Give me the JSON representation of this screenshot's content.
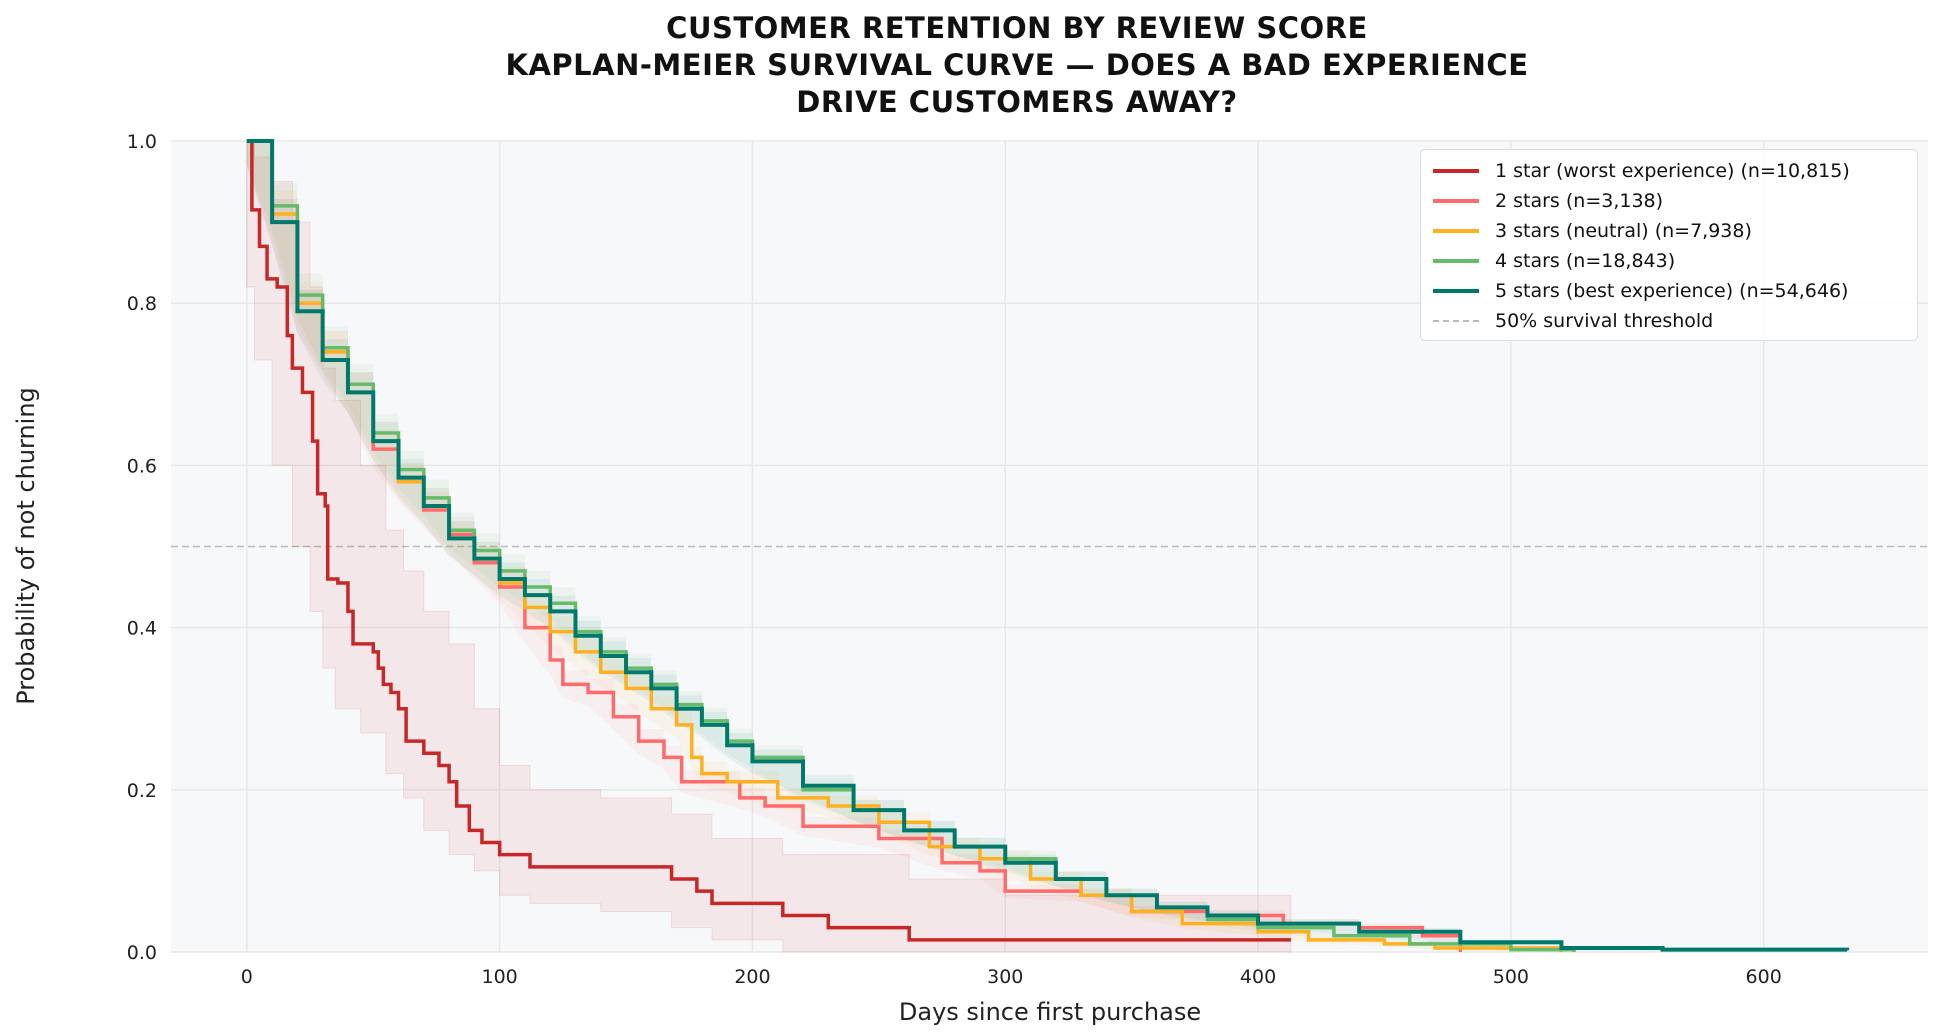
{
  "chart_data": {
    "type": "line",
    "title": [
      "CUSTOMER RETENTION BY REVIEW SCORE",
      "KAPLAN-MEIER SURVIVAL CURVE — DOES A BAD EXPERIENCE",
      "DRIVE CUSTOMERS AWAY?"
    ],
    "xlabel": "Days since first purchase",
    "ylabel": "Probability of not churning",
    "xlim": [
      -30,
      665
    ],
    "ylim": [
      0,
      1
    ],
    "xticks": [
      "0",
      "100",
      "200",
      "300",
      "400",
      "500",
      "600"
    ],
    "yticks": [
      "0.0",
      "0.2",
      "0.4",
      "0.6",
      "0.8",
      "1.0"
    ],
    "grid": true,
    "legend": "top-right",
    "background": "#f7f8fa",
    "threshold": {
      "label": "50% survival threshold",
      "y": 0.5,
      "color": "#bbbbbb"
    },
    "series": [
      {
        "name": "1 star  (worst experience)  (n=10,815)",
        "color": "#c62828",
        "points": [
          [
            0,
            1
          ],
          [
            2,
            0.915
          ],
          [
            5,
            0.87
          ],
          [
            8,
            0.83
          ],
          [
            12,
            0.82
          ],
          [
            16,
            0.76
          ],
          [
            18,
            0.72
          ],
          [
            22,
            0.69
          ],
          [
            26,
            0.63
          ],
          [
            28,
            0.565
          ],
          [
            31,
            0.55
          ],
          [
            32,
            0.46
          ],
          [
            36,
            0.455
          ],
          [
            40,
            0.42
          ],
          [
            42,
            0.38
          ],
          [
            50,
            0.37
          ],
          [
            52,
            0.35
          ],
          [
            54,
            0.33
          ],
          [
            57,
            0.32
          ],
          [
            60,
            0.3
          ],
          [
            63,
            0.26
          ],
          [
            70,
            0.245
          ],
          [
            76,
            0.23
          ],
          [
            80,
            0.21
          ],
          [
            83,
            0.18
          ],
          [
            88,
            0.15
          ],
          [
            93,
            0.135
          ],
          [
            100,
            0.12
          ],
          [
            112,
            0.105
          ],
          [
            168,
            0.09
          ],
          [
            178,
            0.075
          ],
          [
            184,
            0.06
          ],
          [
            212,
            0.045
          ],
          [
            230,
            0.03
          ],
          [
            262,
            0.015
          ],
          [
            413,
            0.015
          ]
        ],
        "ci_lower": [
          [
            0,
            1
          ],
          [
            3,
            0.82
          ],
          [
            10,
            0.73
          ],
          [
            18,
            0.6
          ],
          [
            25,
            0.5
          ],
          [
            30,
            0.42
          ],
          [
            35,
            0.35
          ],
          [
            45,
            0.3
          ],
          [
            55,
            0.27
          ],
          [
            62,
            0.22
          ],
          [
            70,
            0.19
          ],
          [
            80,
            0.15
          ],
          [
            90,
            0.12
          ],
          [
            100,
            0.1
          ],
          [
            112,
            0.07
          ],
          [
            140,
            0.06
          ],
          [
            168,
            0.05
          ],
          [
            184,
            0.03
          ],
          [
            212,
            0.015
          ],
          [
            262,
            0.0
          ],
          [
            413,
            0.0
          ]
        ],
        "ci_upper": [
          [
            0,
            1
          ],
          [
            3,
            0.98
          ],
          [
            10,
            0.95
          ],
          [
            18,
            0.9
          ],
          [
            25,
            0.82
          ],
          [
            30,
            0.72
          ],
          [
            35,
            0.68
          ],
          [
            45,
            0.6
          ],
          [
            55,
            0.52
          ],
          [
            62,
            0.47
          ],
          [
            70,
            0.42
          ],
          [
            80,
            0.38
          ],
          [
            90,
            0.3
          ],
          [
            100,
            0.23
          ],
          [
            112,
            0.2
          ],
          [
            140,
            0.19
          ],
          [
            168,
            0.17
          ],
          [
            184,
            0.14
          ],
          [
            212,
            0.12
          ],
          [
            262,
            0.09
          ],
          [
            300,
            0.07
          ],
          [
            413,
            0.07
          ]
        ]
      },
      {
        "name": "2 stars  (n=3,138)",
        "color": "#ff6b6b",
        "points": [
          [
            0,
            1
          ],
          [
            10,
            0.9
          ],
          [
            20,
            0.79
          ],
          [
            30,
            0.74
          ],
          [
            40,
            0.69
          ],
          [
            50,
            0.62
          ],
          [
            60,
            0.58
          ],
          [
            70,
            0.545
          ],
          [
            80,
            0.515
          ],
          [
            90,
            0.48
          ],
          [
            100,
            0.45
          ],
          [
            110,
            0.4
          ],
          [
            120,
            0.36
          ],
          [
            125,
            0.33
          ],
          [
            135,
            0.32
          ],
          [
            145,
            0.29
          ],
          [
            155,
            0.26
          ],
          [
            165,
            0.24
          ],
          [
            172,
            0.21
          ],
          [
            195,
            0.19
          ],
          [
            205,
            0.18
          ],
          [
            220,
            0.155
          ],
          [
            250,
            0.14
          ],
          [
            275,
            0.11
          ],
          [
            290,
            0.1
          ],
          [
            300,
            0.075
          ],
          [
            330,
            0.07
          ],
          [
            350,
            0.05
          ],
          [
            380,
            0.045
          ],
          [
            410,
            0.035
          ],
          [
            440,
            0.03
          ],
          [
            465,
            0.02
          ],
          [
            480,
            0.0
          ]
        ]
      },
      {
        "name": "3 stars (neutral)  (n=7,938)",
        "color": "#ffb020",
        "points": [
          [
            0,
            1
          ],
          [
            10,
            0.91
          ],
          [
            20,
            0.8
          ],
          [
            30,
            0.74
          ],
          [
            40,
            0.69
          ],
          [
            50,
            0.63
          ],
          [
            60,
            0.58
          ],
          [
            70,
            0.55
          ],
          [
            80,
            0.51
          ],
          [
            90,
            0.485
          ],
          [
            100,
            0.455
          ],
          [
            110,
            0.425
          ],
          [
            120,
            0.395
          ],
          [
            130,
            0.37
          ],
          [
            140,
            0.345
          ],
          [
            150,
            0.325
          ],
          [
            160,
            0.3
          ],
          [
            170,
            0.28
          ],
          [
            176,
            0.24
          ],
          [
            180,
            0.22
          ],
          [
            190,
            0.21
          ],
          [
            210,
            0.19
          ],
          [
            230,
            0.18
          ],
          [
            250,
            0.16
          ],
          [
            270,
            0.13
          ],
          [
            290,
            0.115
          ],
          [
            310,
            0.09
          ],
          [
            330,
            0.07
          ],
          [
            350,
            0.05
          ],
          [
            370,
            0.035
          ],
          [
            400,
            0.025
          ],
          [
            420,
            0.015
          ],
          [
            450,
            0.01
          ],
          [
            470,
            0.005
          ],
          [
            520,
            0.0
          ]
        ]
      },
      {
        "name": "4 stars  (n=18,843)",
        "color": "#66bb6a",
        "points": [
          [
            0,
            1
          ],
          [
            10,
            0.92
          ],
          [
            20,
            0.81
          ],
          [
            30,
            0.745
          ],
          [
            40,
            0.7
          ],
          [
            50,
            0.64
          ],
          [
            60,
            0.595
          ],
          [
            70,
            0.56
          ],
          [
            80,
            0.52
          ],
          [
            90,
            0.495
          ],
          [
            100,
            0.47
          ],
          [
            110,
            0.45
          ],
          [
            120,
            0.43
          ],
          [
            130,
            0.395
          ],
          [
            140,
            0.37
          ],
          [
            150,
            0.35
          ],
          [
            160,
            0.33
          ],
          [
            170,
            0.305
          ],
          [
            180,
            0.285
          ],
          [
            190,
            0.26
          ],
          [
            200,
            0.24
          ],
          [
            220,
            0.2
          ],
          [
            240,
            0.175
          ],
          [
            260,
            0.15
          ],
          [
            280,
            0.13
          ],
          [
            300,
            0.115
          ],
          [
            320,
            0.09
          ],
          [
            340,
            0.07
          ],
          [
            360,
            0.055
          ],
          [
            380,
            0.04
          ],
          [
            400,
            0.03
          ],
          [
            430,
            0.02
          ],
          [
            460,
            0.01
          ],
          [
            500,
            0.003
          ],
          [
            525,
            0.0
          ]
        ]
      },
      {
        "name": "5 stars (best experience)  (n=54,646)",
        "color": "#00796b",
        "points": [
          [
            0,
            1
          ],
          [
            10,
            0.9
          ],
          [
            20,
            0.79
          ],
          [
            30,
            0.73
          ],
          [
            40,
            0.69
          ],
          [
            50,
            0.63
          ],
          [
            60,
            0.585
          ],
          [
            70,
            0.55
          ],
          [
            80,
            0.51
          ],
          [
            90,
            0.485
          ],
          [
            100,
            0.46
          ],
          [
            110,
            0.44
          ],
          [
            120,
            0.42
          ],
          [
            130,
            0.39
          ],
          [
            140,
            0.365
          ],
          [
            150,
            0.345
          ],
          [
            160,
            0.325
          ],
          [
            170,
            0.3
          ],
          [
            180,
            0.28
          ],
          [
            190,
            0.255
          ],
          [
            200,
            0.235
          ],
          [
            220,
            0.205
          ],
          [
            240,
            0.175
          ],
          [
            260,
            0.15
          ],
          [
            280,
            0.13
          ],
          [
            300,
            0.11
          ],
          [
            320,
            0.09
          ],
          [
            340,
            0.07
          ],
          [
            360,
            0.055
          ],
          [
            380,
            0.045
          ],
          [
            400,
            0.035
          ],
          [
            440,
            0.025
          ],
          [
            480,
            0.012
          ],
          [
            520,
            0.005
          ],
          [
            560,
            0.003
          ],
          [
            633,
            0.002
          ]
        ]
      }
    ]
  }
}
